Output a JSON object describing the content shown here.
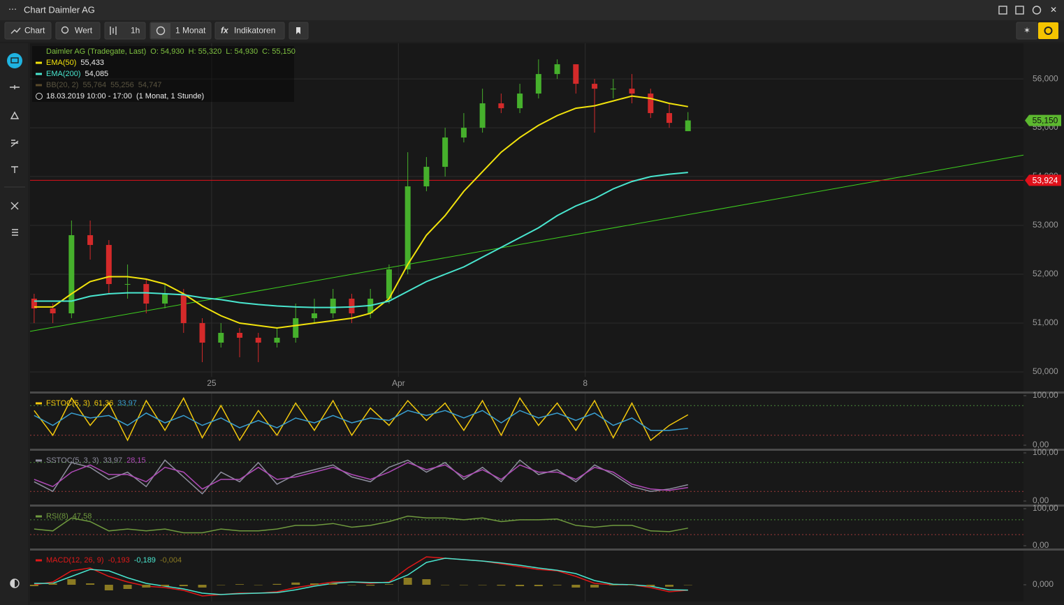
{
  "window": {
    "title": "Chart Daimler AG"
  },
  "toolbar": {
    "buttons": [
      "Chart",
      "Wert",
      "1h",
      "1 Monat",
      "Indikatoren"
    ]
  },
  "chart_data": [
    {
      "type": "candlestick",
      "title": "Daimler AG (Tradegate, Last)",
      "ohlc": [
        "O: 54,930",
        "H: 55,320",
        "L: 54,930",
        "C: 55,150"
      ],
      "period": "18.03.2019 10:00 - 17:00",
      "period_note": "(1 Monat, 1 Stunde)",
      "x": [
        0.25,
        0.75,
        1.25,
        1.75,
        2.25,
        2.75,
        3.25,
        3.75,
        4.25,
        4.75,
        5.25,
        5.75,
        6.25,
        6.75,
        7.25,
        7.75,
        8.25,
        8.75,
        9.25,
        9.75,
        10.25,
        10.75,
        11.25,
        11.75,
        12.25,
        12.75,
        13.25,
        13.75,
        14.25,
        14.75,
        15.25,
        15.75,
        16.25,
        16.75,
        17.25,
        17.75
      ],
      "open": [
        51500,
        51300,
        51200,
        52800,
        52600,
        51800,
        51800,
        51400,
        51600,
        51000,
        50600,
        50800,
        50700,
        50600,
        50700,
        51100,
        51200,
        51500,
        51200,
        51500,
        52100,
        53800,
        54200,
        54800,
        55000,
        55500,
        55400,
        55700,
        56100,
        56300,
        55900,
        55800,
        55800,
        55700,
        55300,
        54930
      ],
      "high": [
        51600,
        51400,
        53100,
        53100,
        52700,
        52200,
        51900,
        51800,
        51700,
        51100,
        51000,
        50900,
        50800,
        50900,
        51400,
        51500,
        51700,
        51600,
        51700,
        52200,
        54500,
        54400,
        55000,
        55300,
        55800,
        55700,
        55900,
        56400,
        56400,
        56300,
        56000,
        56000,
        56100,
        55800,
        55500,
        55320
      ],
      "low": [
        51000,
        51000,
        51100,
        52300,
        51600,
        51500,
        51200,
        51300,
        50800,
        50200,
        50500,
        50300,
        50200,
        50500,
        50600,
        51000,
        51100,
        51000,
        51100,
        51400,
        52000,
        53700,
        54000,
        54700,
        54900,
        55300,
        55300,
        55600,
        56000,
        55700,
        54900,
        55600,
        55500,
        55200,
        55000,
        54930
      ],
      "close": [
        51300,
        51200,
        52800,
        52600,
        51800,
        51800,
        51400,
        51600,
        51000,
        50600,
        50800,
        50700,
        50600,
        50700,
        51100,
        51200,
        51500,
        51200,
        51500,
        52100,
        53800,
        54200,
        54800,
        55000,
        55500,
        55400,
        55700,
        56100,
        56300,
        55900,
        55800,
        55800,
        55700,
        55300,
        55100,
        55150
      ],
      "up_color": "#46b02c",
      "down_color": "#d42a2a",
      "series": [
        {
          "name": "EMA(50)",
          "color": "#f2e30c",
          "readout": "55,433",
          "values": [
            51330,
            51330,
            51600,
            51850,
            51950,
            51950,
            51900,
            51800,
            51600,
            51350,
            51150,
            51000,
            50950,
            50900,
            50950,
            51000,
            51050,
            51100,
            51200,
            51500,
            52200,
            52800,
            53200,
            53700,
            54100,
            54500,
            54800,
            55050,
            55250,
            55400,
            55450,
            55550,
            55650,
            55600,
            55500,
            55433
          ]
        },
        {
          "name": "EMA(200)",
          "color": "#49e6cf",
          "readout": "54,085",
          "values": [
            51450,
            51450,
            51450,
            51550,
            51600,
            51620,
            51620,
            51600,
            51580,
            51520,
            51480,
            51420,
            51380,
            51350,
            51330,
            51320,
            51320,
            51330,
            51360,
            51450,
            51650,
            51850,
            52000,
            52150,
            52350,
            52550,
            52750,
            52950,
            53200,
            53400,
            53550,
            53750,
            53900,
            54000,
            54050,
            54085
          ]
        }
      ],
      "inactive_indicator": {
        "name": "BB(20, 2)",
        "readouts": [
          "55,764",
          "55,256",
          "54,747"
        ]
      },
      "trendline": {
        "color": "#3ed11e",
        "x": [
          0.14,
          26.73
        ],
        "values": [
          50830,
          54440
        ]
      },
      "hline": {
        "value": 53924,
        "label": "53,924",
        "color": "#e0101a"
      },
      "last_price": {
        "value": 55150,
        "label": "55,150",
        "color": "#5cb82f"
      },
      "xlim": [
        0.14,
        26.73
      ],
      "ylim": [
        49900,
        56730
      ],
      "xticks": [
        {
          "value": 5,
          "label": "25"
        },
        {
          "value": 10,
          "label": "Apr"
        },
        {
          "value": 15,
          "label": "8"
        }
      ],
      "yticks": [
        {
          "value": 50000,
          "label": "50,000"
        },
        {
          "value": 51000,
          "label": "51,000"
        },
        {
          "value": 52000,
          "label": "52,000"
        },
        {
          "value": 53000,
          "label": "53,000"
        },
        {
          "value": 54000,
          "label": "54,000"
        },
        {
          "value": 55000,
          "label": "55,000"
        },
        {
          "value": 56000,
          "label": "56,000"
        }
      ],
      "grid": true
    },
    {
      "type": "line",
      "title": "FSTOC(5, 3)",
      "series": [
        {
          "color": "#f2c80c",
          "readout": "61,36",
          "values": [
            70,
            20,
            95,
            40,
            85,
            10,
            90,
            30,
            95,
            15,
            80,
            10,
            70,
            20,
            85,
            30,
            90,
            20,
            75,
            40,
            90,
            50,
            85,
            30,
            90,
            20,
            95,
            40,
            85,
            30,
            90,
            15,
            85,
            10,
            40,
            61.36
          ]
        },
        {
          "color": "#3a9fd0",
          "readout": "33,97",
          "values": [
            60,
            40,
            65,
            55,
            60,
            40,
            65,
            45,
            60,
            40,
            55,
            35,
            50,
            35,
            55,
            45,
            60,
            45,
            55,
            50,
            70,
            60,
            70,
            55,
            70,
            45,
            70,
            55,
            65,
            50,
            65,
            40,
            55,
            30,
            30,
            33.97
          ]
        }
      ],
      "levels": [
        {
          "value": 80,
          "color": "#4b8a3a"
        },
        {
          "value": 20,
          "color": "#a03a3a"
        }
      ],
      "ylim": [
        0,
        100
      ],
      "yticks": [
        {
          "value": 100,
          "label": "100,00"
        },
        {
          "value": 0,
          "label": "0,00"
        }
      ]
    },
    {
      "type": "line",
      "title": "SSTOC(5, 3, 3)",
      "series": [
        {
          "color": "#8e8e9e",
          "readout": "33,97",
          "values": [
            40,
            20,
            80,
            70,
            45,
            60,
            30,
            85,
            50,
            15,
            60,
            40,
            80,
            35,
            55,
            65,
            75,
            50,
            40,
            70,
            85,
            60,
            80,
            45,
            70,
            40,
            85,
            55,
            65,
            40,
            75,
            55,
            30,
            20,
            25,
            33.97
          ]
        },
        {
          "color": "#b04ab8",
          "readout": "28,15",
          "values": [
            45,
            30,
            60,
            75,
            55,
            55,
            40,
            70,
            60,
            25,
            45,
            45,
            70,
            45,
            50,
            60,
            70,
            55,
            45,
            60,
            80,
            65,
            75,
            50,
            65,
            45,
            75,
            60,
            60,
            45,
            70,
            60,
            35,
            25,
            22,
            28.15
          ]
        }
      ],
      "levels": [
        {
          "value": 80,
          "color": "#4b8a3a"
        },
        {
          "value": 20,
          "color": "#a03a3a"
        }
      ],
      "ylim": [
        0,
        100
      ],
      "yticks": [
        {
          "value": 100,
          "label": "100,00"
        },
        {
          "value": 0,
          "label": "0,00"
        }
      ]
    },
    {
      "type": "line",
      "title": "RSI(8)",
      "series": [
        {
          "color": "#6f9a3e",
          "readout": "47,58",
          "values": [
            45,
            40,
            75,
            65,
            40,
            45,
            40,
            45,
            35,
            35,
            45,
            40,
            40,
            45,
            55,
            55,
            60,
            50,
            55,
            65,
            80,
            75,
            75,
            70,
            75,
            65,
            70,
            70,
            72,
            55,
            50,
            55,
            55,
            40,
            38,
            47.58
          ]
        }
      ],
      "levels": [
        {
          "value": 70,
          "color": "#4b8a3a"
        },
        {
          "value": 30,
          "color": "#a03a3a"
        }
      ],
      "ylim": [
        0,
        100
      ],
      "yticks": [
        {
          "value": 100,
          "label": "100,00"
        },
        {
          "value": 0,
          "label": "0,00"
        }
      ]
    },
    {
      "type": "line",
      "title": "MACD(12, 26, 9)",
      "series": [
        {
          "color": "#e01818",
          "readout": "-0,193",
          "values": [
            0,
            0.1,
            0.5,
            0.6,
            0.3,
            0.1,
            -0.05,
            -0.1,
            -0.2,
            -0.4,
            -0.35,
            -0.3,
            -0.3,
            -0.25,
            -0.1,
            0,
            0.1,
            0.1,
            0.05,
            0.1,
            0.6,
            1.0,
            0.95,
            0.9,
            0.85,
            0.75,
            0.65,
            0.55,
            0.5,
            0.3,
            0.05,
            0,
            0,
            -0.1,
            -0.25,
            -0.193
          ]
        },
        {
          "color": "#49e6cf",
          "readout": "-0,189",
          "values": [
            0.05,
            0.05,
            0.3,
            0.55,
            0.5,
            0.25,
            0.05,
            -0.05,
            -0.15,
            -0.3,
            -0.35,
            -0.32,
            -0.3,
            -0.28,
            -0.18,
            -0.05,
            0.05,
            0.1,
            0.08,
            0.08,
            0.35,
            0.8,
            0.95,
            0.9,
            0.85,
            0.78,
            0.7,
            0.6,
            0.52,
            0.4,
            0.15,
            0.02,
            0,
            -0.05,
            -0.18,
            -0.189
          ]
        },
        {
          "color": "#8a7a22",
          "readout": "-0,004",
          "style": "histogram",
          "values": [
            -0.05,
            0.05,
            0.2,
            0.05,
            -0.2,
            -0.15,
            -0.1,
            -0.05,
            -0.05,
            -0.1,
            0,
            0.02,
            0,
            0.03,
            0.08,
            0.05,
            0.05,
            0,
            -0.03,
            0.02,
            0.25,
            0.2,
            0,
            0,
            0,
            -0.03,
            -0.05,
            -0.05,
            -0.02,
            -0.1,
            -0.1,
            -0.02,
            0,
            -0.05,
            -0.07,
            -0.004
          ]
        }
      ],
      "ylim": [
        -0.55,
        1.2
      ],
      "yticks": [
        {
          "value": 0,
          "label": "0,000"
        }
      ]
    }
  ]
}
